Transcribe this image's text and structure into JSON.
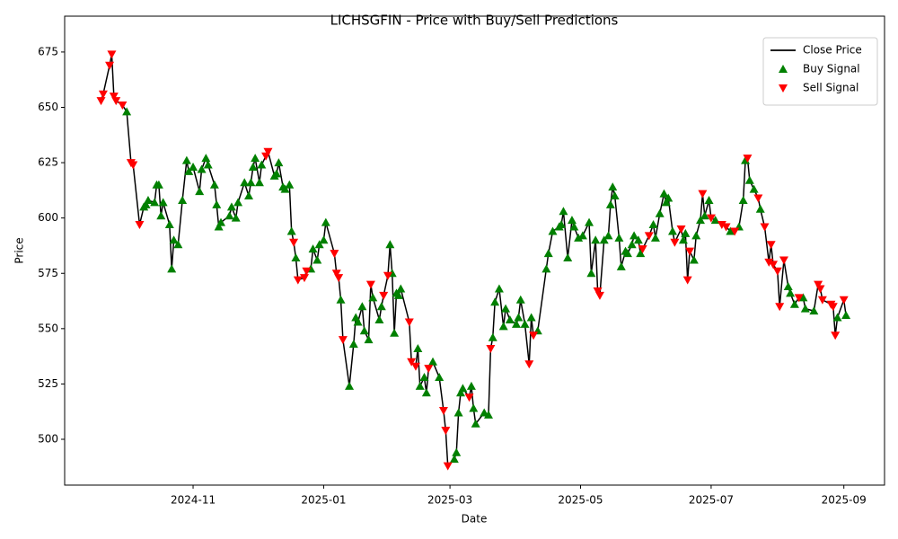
{
  "chart_data": {
    "type": "line",
    "title": "LICHSGFIN - Price with Buy/Sell Predictions",
    "xlabel": "Date",
    "ylabel": "Price",
    "xlim": [
      -60,
      323
    ],
    "ylim": [
      479.3,
      691.2
    ],
    "xticks": [
      {
        "value": 0,
        "label": "2024-11"
      },
      {
        "value": 61,
        "label": "2025-01"
      },
      {
        "value": 120,
        "label": "2025-03"
      },
      {
        "value": 181,
        "label": "2025-05"
      },
      {
        "value": 242,
        "label": "2025-07"
      },
      {
        "value": 304,
        "label": "2025-09"
      }
    ],
    "yticks": [
      500,
      525,
      550,
      575,
      600,
      625,
      650,
      675
    ],
    "grid": false,
    "legend": "upper right",
    "series": [
      {
        "name": "Close Price",
        "color": "#000000",
        "marker": "none",
        "x": [
          -43,
          -42,
          -39,
          -38,
          -37,
          -36,
          -33,
          -31,
          -29,
          -28,
          -25,
          -23,
          -22,
          -21,
          -18,
          -17,
          -16,
          -15,
          -14,
          -11,
          -10,
          -9,
          -7,
          -5,
          -3,
          -2,
          0,
          3,
          4,
          6,
          7,
          10,
          11,
          12,
          13,
          17,
          18,
          20,
          21,
          24,
          26,
          27,
          28,
          29,
          31,
          32,
          34,
          35,
          38,
          39,
          40,
          42,
          43,
          45,
          46,
          47,
          48,
          49,
          52,
          53,
          55,
          56,
          58,
          59,
          61,
          62,
          66,
          67,
          68,
          69,
          70,
          73,
          75,
          76,
          77,
          79,
          80,
          82,
          83,
          84,
          87,
          88,
          89,
          91,
          92,
          93,
          94,
          95,
          96,
          97,
          101,
          102,
          104,
          105,
          106,
          108,
          109,
          110,
          112,
          115,
          117,
          118,
          119,
          122,
          123,
          124,
          125,
          126,
          129,
          130,
          131,
          132,
          136,
          138,
          139,
          140,
          141,
          143,
          145,
          146,
          148,
          151,
          152,
          153,
          155,
          157,
          158,
          159,
          161,
          165,
          166,
          168,
          171,
          172,
          173,
          175,
          177,
          178,
          180,
          182,
          185,
          186,
          188,
          189,
          190,
          192,
          194,
          195,
          196,
          197,
          199,
          200,
          202,
          203,
          205,
          206,
          208,
          209,
          210,
          213,
          215,
          216,
          218,
          220,
          221,
          222,
          224,
          225,
          228,
          229,
          230,
          231,
          232,
          234,
          235,
          237,
          238,
          239,
          241,
          242,
          244,
          247,
          249,
          251,
          253,
          255,
          257,
          258,
          259,
          260,
          262,
          264,
          265,
          267,
          269,
          270,
          271,
          273,
          274,
          276,
          278,
          279,
          281,
          283,
          285,
          286,
          290,
          292,
          293,
          294,
          298,
          299,
          300,
          301,
          304,
          305
        ],
        "values": [
          653,
          656,
          669,
          674,
          655,
          653,
          651,
          648,
          625,
          624,
          597,
          605,
          606,
          608,
          607,
          615,
          615,
          601,
          607,
          597,
          577,
          590,
          588,
          608,
          626,
          621,
          623,
          612,
          622,
          627,
          624,
          615,
          606,
          596,
          598,
          601,
          605,
          600,
          607,
          616,
          610,
          616,
          623,
          627,
          616,
          624,
          628,
          630,
          619,
          620,
          625,
          614,
          613,
          615,
          594,
          589,
          582,
          572,
          573,
          576,
          577,
          586,
          581,
          588,
          590,
          598,
          584,
          575,
          573,
          563,
          545,
          524,
          543,
          555,
          553,
          560,
          549,
          545,
          570,
          564,
          554,
          560,
          565,
          574,
          588,
          575,
          548,
          566,
          565,
          568,
          553,
          535,
          533,
          541,
          524,
          528,
          521,
          532,
          535,
          528,
          513,
          504,
          488,
          491,
          494,
          512,
          521,
          523,
          519,
          524,
          514,
          507,
          512,
          511,
          541,
          546,
          562,
          568,
          551,
          559,
          554,
          552,
          555,
          563,
          552,
          534,
          555,
          547,
          549,
          577,
          584,
          594,
          596,
          597,
          603,
          582,
          599,
          596,
          591,
          592,
          598,
          575,
          590,
          567,
          565,
          590,
          592,
          606,
          614,
          610,
          591,
          578,
          585,
          584,
          588,
          592,
          590,
          584,
          586,
          592,
          597,
          591,
          602,
          611,
          607,
          609,
          594,
          589,
          595,
          590,
          593,
          572,
          585,
          581,
          592,
          599,
          611,
          601,
          608,
          600,
          599,
          597,
          596,
          594,
          594,
          596,
          608,
          626,
          627,
          617,
          613,
          609,
          604,
          596,
          580,
          588,
          579,
          576,
          560,
          581,
          569,
          566,
          561,
          564,
          564,
          559,
          558,
          570,
          568,
          563,
          561,
          560,
          547,
          555,
          563,
          556
        ]
      },
      {
        "name": "Buy Signal",
        "color": "#008000",
        "marker": "^",
        "x": [
          -31,
          -23,
          -22,
          -21,
          -18,
          -17,
          -16,
          -15,
          -14,
          -11,
          -10,
          -9,
          -7,
          -5,
          -3,
          -2,
          0,
          3,
          4,
          6,
          7,
          10,
          11,
          12,
          13,
          17,
          18,
          20,
          21,
          24,
          26,
          27,
          28,
          29,
          31,
          32,
          38,
          39,
          40,
          42,
          43,
          45,
          46,
          48,
          55,
          56,
          58,
          59,
          61,
          62,
          69,
          73,
          75,
          76,
          77,
          79,
          80,
          82,
          84,
          87,
          88,
          92,
          93,
          94,
          95,
          96,
          97,
          105,
          106,
          108,
          109,
          112,
          115,
          122,
          123,
          124,
          125,
          126,
          130,
          131,
          132,
          136,
          138,
          140,
          141,
          143,
          145,
          146,
          148,
          151,
          152,
          153,
          155,
          158,
          161,
          165,
          166,
          168,
          171,
          172,
          173,
          175,
          177,
          178,
          180,
          182,
          185,
          186,
          188,
          192,
          194,
          195,
          196,
          197,
          199,
          200,
          202,
          203,
          205,
          206,
          208,
          209,
          215,
          216,
          218,
          220,
          221,
          222,
          224,
          229,
          230,
          234,
          235,
          237,
          239,
          241,
          244,
          251,
          255,
          257,
          258,
          260,
          262,
          265,
          278,
          279,
          281,
          285,
          286,
          290,
          301,
          305
        ],
        "values": [
          648,
          605,
          606,
          608,
          607,
          615,
          615,
          601,
          607,
          597,
          577,
          590,
          588,
          608,
          626,
          621,
          623,
          612,
          622,
          627,
          624,
          615,
          606,
          596,
          598,
          601,
          605,
          600,
          607,
          616,
          610,
          616,
          623,
          627,
          616,
          624,
          619,
          620,
          625,
          614,
          613,
          615,
          594,
          582,
          577,
          586,
          581,
          588,
          590,
          598,
          563,
          524,
          543,
          555,
          553,
          560,
          549,
          545,
          564,
          554,
          560,
          588,
          575,
          548,
          566,
          565,
          568,
          541,
          524,
          528,
          521,
          535,
          528,
          491,
          494,
          512,
          521,
          523,
          524,
          514,
          507,
          512,
          511,
          546,
          562,
          568,
          551,
          559,
          554,
          552,
          555,
          563,
          552,
          555,
          549,
          577,
          584,
          594,
          596,
          597,
          603,
          582,
          599,
          596,
          591,
          592,
          598,
          575,
          590,
          590,
          592,
          606,
          614,
          610,
          591,
          578,
          585,
          584,
          588,
          592,
          590,
          584,
          597,
          591,
          602,
          611,
          607,
          609,
          594,
          590,
          593,
          581,
          592,
          599,
          601,
          608,
          599,
          594,
          596,
          608,
          626,
          617,
          613,
          604,
          569,
          566,
          561,
          564,
          559,
          558,
          555,
          556
        ]
      },
      {
        "name": "Sell Signal",
        "color": "#ff0000",
        "marker": "v",
        "x": [
          -43,
          -42,
          -39,
          -38,
          -37,
          -36,
          -33,
          -29,
          -28,
          -25,
          34,
          35,
          47,
          49,
          52,
          53,
          66,
          67,
          68,
          70,
          83,
          89,
          91,
          101,
          102,
          104,
          110,
          117,
          118,
          119,
          129,
          139,
          157,
          159,
          189,
          190,
          210,
          213,
          225,
          228,
          231,
          232,
          238,
          242,
          247,
          249,
          253,
          259,
          264,
          267,
          269,
          270,
          271,
          273,
          274,
          276,
          283,
          292,
          293,
          294,
          298,
          299,
          300,
          304
        ],
        "values": [
          653,
          656,
          669,
          674,
          655,
          653,
          651,
          625,
          624,
          597,
          628,
          630,
          589,
          572,
          573,
          576,
          584,
          575,
          573,
          545,
          570,
          565,
          574,
          553,
          535,
          533,
          532,
          513,
          504,
          488,
          519,
          541,
          534,
          547,
          567,
          565,
          586,
          592,
          589,
          595,
          572,
          585,
          611,
          600,
          597,
          596,
          594,
          627,
          609,
          596,
          580,
          588,
          579,
          576,
          560,
          581,
          564,
          570,
          568,
          563,
          561,
          560,
          547,
          563
        ]
      }
    ]
  }
}
